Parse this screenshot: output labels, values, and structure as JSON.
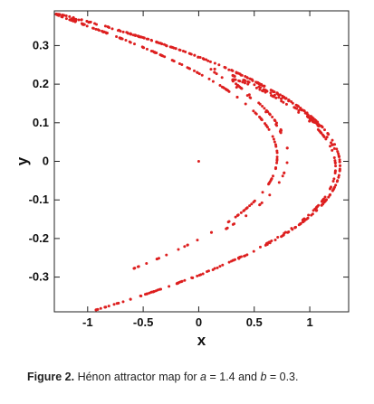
{
  "caption": {
    "figure_label": "Figure 2.",
    "pre": " Hénon attractor map for ",
    "a_sym": "a",
    "a_eq": " = 1.4 and ",
    "b_sym": "b",
    "b_eq": " = 0.3."
  },
  "chart_data": {
    "type": "scatter",
    "title": "",
    "xlabel": "x",
    "ylabel": "y",
    "xlim": [
      -1.3,
      1.35
    ],
    "ylim": [
      -0.39,
      0.39
    ],
    "x_ticks": [
      -1,
      -0.5,
      0,
      0.5,
      1
    ],
    "x_tick_labels": [
      "-1",
      "-0.5",
      "0",
      "0.5",
      "1"
    ],
    "y_ticks": [
      0.3,
      0.2,
      0.1,
      0,
      -0.1,
      -0.2,
      -0.3
    ],
    "y_tick_labels": [
      "0.3",
      "0.2",
      "0.1",
      "0",
      "-0.1",
      "-0.2",
      "-0.3"
    ],
    "grid": false,
    "marker_color": "#dd1f1f",
    "map": {
      "a": 1.4,
      "b": 0.3,
      "x0": 0,
      "y0": 0,
      "iterations": 700
    },
    "isolated_point": {
      "x": 0,
      "y": 0
    }
  }
}
